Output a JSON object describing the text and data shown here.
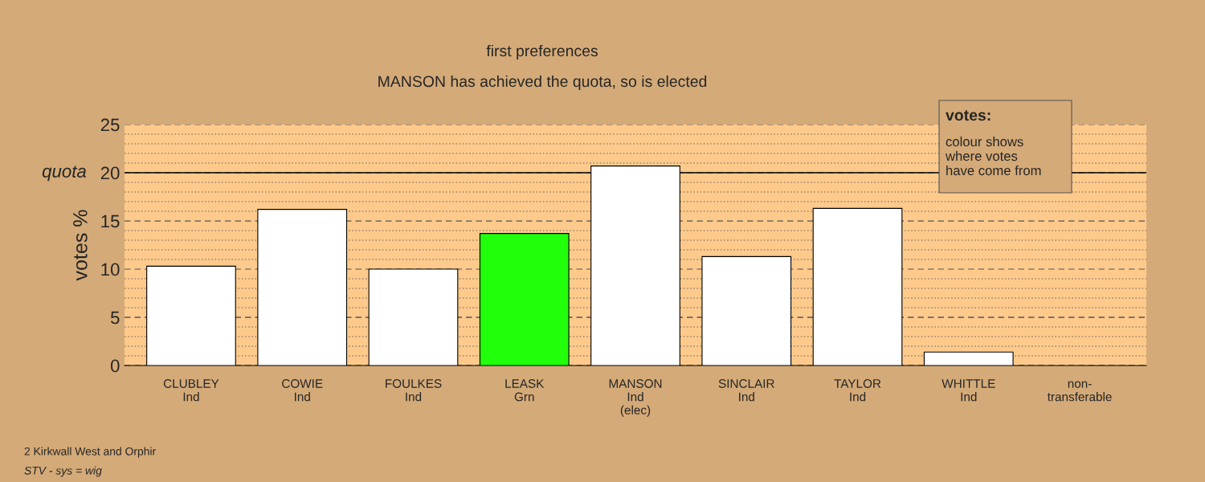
{
  "chart_data": {
    "type": "bar",
    "title": "first preferences",
    "subtitle": "MANSON has achieved the quota, so is elected",
    "ylabel": "votes %",
    "categories": [
      "CLUBLEY\nInd",
      "COWIE\nInd",
      "FOULKES\nInd",
      "LEASK\nGrn",
      "MANSON\nInd\n(elec)",
      "SINCLAIR\nInd",
      "TAYLOR\nInd",
      "WHITTLE\nInd",
      "non-\ntransferable"
    ],
    "values": [
      10.3,
      16.2,
      10.0,
      13.7,
      20.7,
      11.3,
      16.3,
      1.4,
      null
    ],
    "colors": [
      "#ffffff",
      "#ffffff",
      "#ffffff",
      "#22ff0a",
      "#ffffff",
      "#ffffff",
      "#ffffff",
      "#ffffff",
      "#ffffff"
    ],
    "ylim": [
      0,
      25
    ],
    "yticks": [
      0,
      5,
      10,
      15,
      20,
      25
    ],
    "grid": "y",
    "ref_lines": [
      {
        "axis": "y",
        "value": 20,
        "label": "quota",
        "color": "#000000",
        "line_style": "solid"
      }
    ],
    "annotations": [
      "votes:",
      "colour shows\nwhere votes\nhave come from",
      "2 Kirkwall West and Orphir",
      "STV - sys = wig"
    ]
  }
}
